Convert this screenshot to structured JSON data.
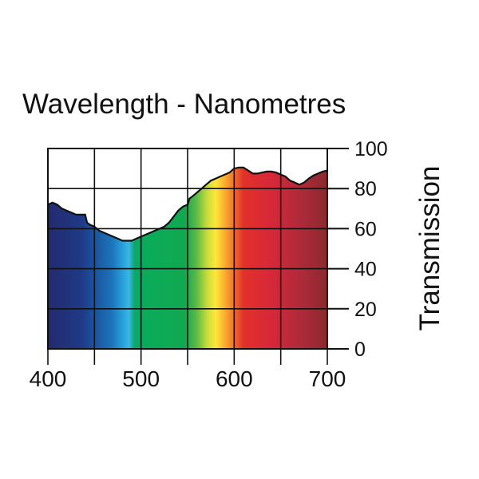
{
  "chart_data": {
    "type": "area",
    "title": "Wavelength - Nanometres",
    "xlabel": "Wavelength - Nanometres",
    "ylabel": "Transmission",
    "xlim": [
      400,
      700
    ],
    "ylim": [
      0,
      100
    ],
    "x_ticks": [
      400,
      500,
      600,
      700
    ],
    "x_grid": [
      400,
      450,
      500,
      550,
      600,
      650,
      700
    ],
    "y_ticks": [
      0,
      20,
      40,
      60,
      80,
      100
    ],
    "grid": true,
    "fill": "visible spectrum gradient",
    "series": [
      {
        "name": "Transmission",
        "x": [
          400,
          405,
          410,
          415,
          420,
          425,
          430,
          435,
          440,
          442,
          445,
          450,
          455,
          460,
          465,
          470,
          475,
          480,
          485,
          490,
          495,
          500,
          505,
          510,
          515,
          520,
          525,
          530,
          535,
          540,
          545,
          550,
          552,
          555,
          560,
          565,
          570,
          575,
          580,
          585,
          590,
          595,
          600,
          605,
          610,
          615,
          620,
          625,
          630,
          635,
          640,
          645,
          650,
          655,
          660,
          665,
          670,
          675,
          680,
          685,
          690,
          695,
          700
        ],
        "values": [
          72,
          73,
          72,
          70,
          69,
          68,
          67,
          67,
          67,
          63,
          62,
          61,
          59,
          58,
          57,
          56,
          55,
          54,
          54,
          54,
          55,
          56,
          57,
          58,
          59,
          60,
          61,
          63,
          66,
          69,
          71,
          72,
          75,
          76,
          78,
          80,
          82,
          84,
          85,
          86,
          87,
          88,
          90,
          90.5,
          90.5,
          89,
          87.5,
          87.5,
          88,
          88.5,
          88.5,
          88,
          87,
          86,
          84,
          83,
          82,
          83,
          85,
          86.5,
          87.5,
          88.5,
          89
        ]
      }
    ]
  }
}
